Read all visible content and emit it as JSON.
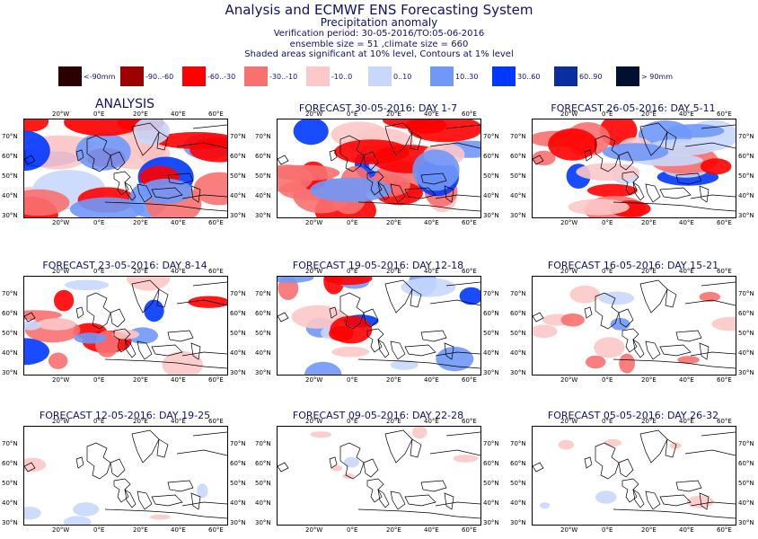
{
  "header": {
    "title": "Analysis and ECMWF ENS Forecasting System",
    "subtitle": "Precipitation anomaly",
    "verification": "Verification period: 30-05-2016/TO:05-06-2016",
    "ensemble": "ensemble size = 51  ,climate size = 660",
    "significance": "Shaded areas significant at 10% level, Contours at 1% level"
  },
  "legend": [
    {
      "label": "<-90mm",
      "color": "#2a0000"
    },
    {
      "label": "-90..-60",
      "color": "#9c0000"
    },
    {
      "label": "-60..-30",
      "color": "#ff0000"
    },
    {
      "label": "-30..-10",
      "color": "#f87070"
    },
    {
      "label": "-10..0",
      "color": "#fcc8c8"
    },
    {
      "label": "0..10",
      "color": "#c8d8fc"
    },
    {
      "label": "10..30",
      "color": "#7098f8"
    },
    {
      "label": "30..60",
      "color": "#0038ff"
    },
    {
      "label": "60..90",
      "color": "#0a2ea0"
    },
    {
      "label": "> 90mm",
      "color": "#001030"
    }
  ],
  "axes": {
    "lon_labels": [
      "20°W",
      "0°E",
      "20°E",
      "40°E",
      "60°E"
    ],
    "lat_labels": [
      "70°N",
      "60°N",
      "50°N",
      "40°N",
      "30°N"
    ]
  },
  "panels": [
    {
      "title": "ANALYSIS",
      "level": 5
    },
    {
      "title": "FORECAST 30-05-2016: DAY 1-7",
      "level": 5
    },
    {
      "title": "FORECAST 26-05-2016: DAY 5-11",
      "level": 4
    },
    {
      "title": "FORECAST 23-05-2016: DAY 8-14",
      "level": 3
    },
    {
      "title": "FORECAST 19-05-2016: DAY 12-18",
      "level": 3
    },
    {
      "title": "FORECAST 16-05-2016: DAY 15-21",
      "level": 2
    },
    {
      "title": "FORECAST 12-05-2016: DAY 19-25",
      "level": 1
    },
    {
      "title": "FORECAST 09-05-2016: DAY 22-28",
      "level": 1
    },
    {
      "title": "FORECAST 05-05-2016: DAY 26-32",
      "level": 1
    }
  ]
}
